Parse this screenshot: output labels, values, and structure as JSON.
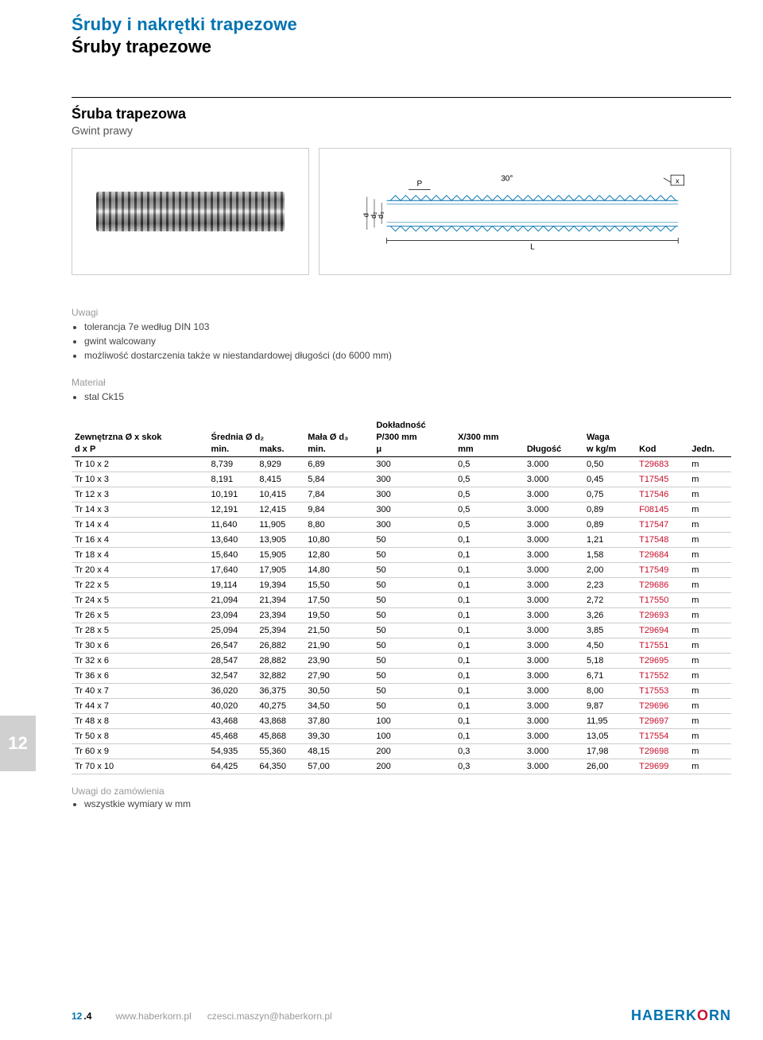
{
  "header": {
    "title_main": "Śruby i nakrętki trapezowe",
    "title_sub": "Śruby trapezowe"
  },
  "subheader": {
    "name": "Śruba trapezowa",
    "desc": "Gwint prawy"
  },
  "diagram_labels": {
    "angle": "30°",
    "pitch": "P",
    "x": "x",
    "length": "L",
    "d": "d",
    "d2": "d₂",
    "d3": "d₃"
  },
  "notes": {
    "label": "Uwagi",
    "items": [
      "tolerancja 7e według DIN 103",
      "gwint walcowany",
      "możliwość dostarczenia także w niestandardowej długości (do 6000 mm)"
    ]
  },
  "material": {
    "label": "Materiał",
    "items": [
      "stal Ck15"
    ]
  },
  "table": {
    "columns": {
      "c0_top": "Zewnętrzna Ø x skok",
      "c0_bot": "d x P",
      "c1_top": "Średnia Ø d₂",
      "c1_bot": "min.",
      "c2_top": "",
      "c2_bot": "maks.",
      "c3_top": "Mała Ø d₃",
      "c3_bot": "min.",
      "c4_over": "Dokładność",
      "c4_top": "P/300 mm",
      "c4_bot": "μ",
      "c5_top": "X/300 mm",
      "c5_bot": "mm",
      "c6_top": "",
      "c6_bot": "Długość",
      "c7_top": "Waga",
      "c7_bot": "w kg/m",
      "c8_bot": "Kod",
      "c9_bot": "Jedn."
    },
    "kod_color": "#c8102e",
    "rows": [
      [
        "Tr 10 x 2",
        "8,739",
        "8,929",
        "6,89",
        "300",
        "0,5",
        "3.000",
        "0,50",
        "T29683",
        "m"
      ],
      [
        "Tr 10 x 3",
        "8,191",
        "8,415",
        "5,84",
        "300",
        "0,5",
        "3.000",
        "0,45",
        "T17545",
        "m"
      ],
      [
        "Tr 12 x 3",
        "10,191",
        "10,415",
        "7,84",
        "300",
        "0,5",
        "3.000",
        "0,75",
        "T17546",
        "m"
      ],
      [
        "Tr 14 x 3",
        "12,191",
        "12,415",
        "9,84",
        "300",
        "0,5",
        "3.000",
        "0,89",
        "F08145",
        "m"
      ],
      [
        "Tr 14 x 4",
        "11,640",
        "11,905",
        "8,80",
        "300",
        "0,5",
        "3.000",
        "0,89",
        "T17547",
        "m"
      ],
      [
        "Tr 16 x 4",
        "13,640",
        "13,905",
        "10,80",
        "50",
        "0,1",
        "3.000",
        "1,21",
        "T17548",
        "m"
      ],
      [
        "Tr 18 x 4",
        "15,640",
        "15,905",
        "12,80",
        "50",
        "0,1",
        "3.000",
        "1,58",
        "T29684",
        "m"
      ],
      [
        "Tr 20 x 4",
        "17,640",
        "17,905",
        "14,80",
        "50",
        "0,1",
        "3.000",
        "2,00",
        "T17549",
        "m"
      ],
      [
        "Tr 22 x 5",
        "19,114",
        "19,394",
        "15,50",
        "50",
        "0,1",
        "3.000",
        "2,23",
        "T29686",
        "m"
      ],
      [
        "Tr 24 x 5",
        "21,094",
        "21,394",
        "17,50",
        "50",
        "0,1",
        "3.000",
        "2,72",
        "T17550",
        "m"
      ],
      [
        "Tr 26 x 5",
        "23,094",
        "23,394",
        "19,50",
        "50",
        "0,1",
        "3.000",
        "3,26",
        "T29693",
        "m"
      ],
      [
        "Tr 28 x 5",
        "25,094",
        "25,394",
        "21,50",
        "50",
        "0,1",
        "3.000",
        "3,85",
        "T29694",
        "m"
      ],
      [
        "Tr 30 x 6",
        "26,547",
        "26,882",
        "21,90",
        "50",
        "0,1",
        "3.000",
        "4,50",
        "T17551",
        "m"
      ],
      [
        "Tr 32 x 6",
        "28,547",
        "28,882",
        "23,90",
        "50",
        "0,1",
        "3.000",
        "5,18",
        "T29695",
        "m"
      ],
      [
        "Tr 36 x 6",
        "32,547",
        "32,882",
        "27,90",
        "50",
        "0,1",
        "3.000",
        "6,71",
        "T17552",
        "m"
      ],
      [
        "Tr 40 x 7",
        "36,020",
        "36,375",
        "30,50",
        "50",
        "0,1",
        "3.000",
        "8,00",
        "T17553",
        "m"
      ],
      [
        "Tr 44 x 7",
        "40,020",
        "40,275",
        "34,50",
        "50",
        "0,1",
        "3.000",
        "9,87",
        "T29696",
        "m"
      ],
      [
        "Tr 48 x 8",
        "43,468",
        "43,868",
        "37,80",
        "100",
        "0,1",
        "3.000",
        "11,95",
        "T29697",
        "m"
      ],
      [
        "Tr 50 x 8",
        "45,468",
        "45,868",
        "39,30",
        "100",
        "0,1",
        "3.000",
        "13,05",
        "T17554",
        "m"
      ],
      [
        "Tr 60 x 9",
        "54,935",
        "55,360",
        "48,15",
        "200",
        "0,3",
        "3.000",
        "17,98",
        "T29698",
        "m"
      ],
      [
        "Tr 70 x 10",
        "64,425",
        "64,350",
        "57,00",
        "200",
        "0,3",
        "3.000",
        "26,00",
        "T29699",
        "m"
      ]
    ]
  },
  "side_tab": "12",
  "order_notes": {
    "label": "Uwagi do zamówienia",
    "items": [
      "wszystkie wymiary w mm"
    ]
  },
  "footer": {
    "page_section": "12",
    "page_num": ".4",
    "url": "www.haberkorn.pl",
    "email": "czesci.maszyn@haberkorn.pl",
    "logo_main": "HABERK",
    "logo_red": "O",
    "logo_main2": "RN"
  }
}
